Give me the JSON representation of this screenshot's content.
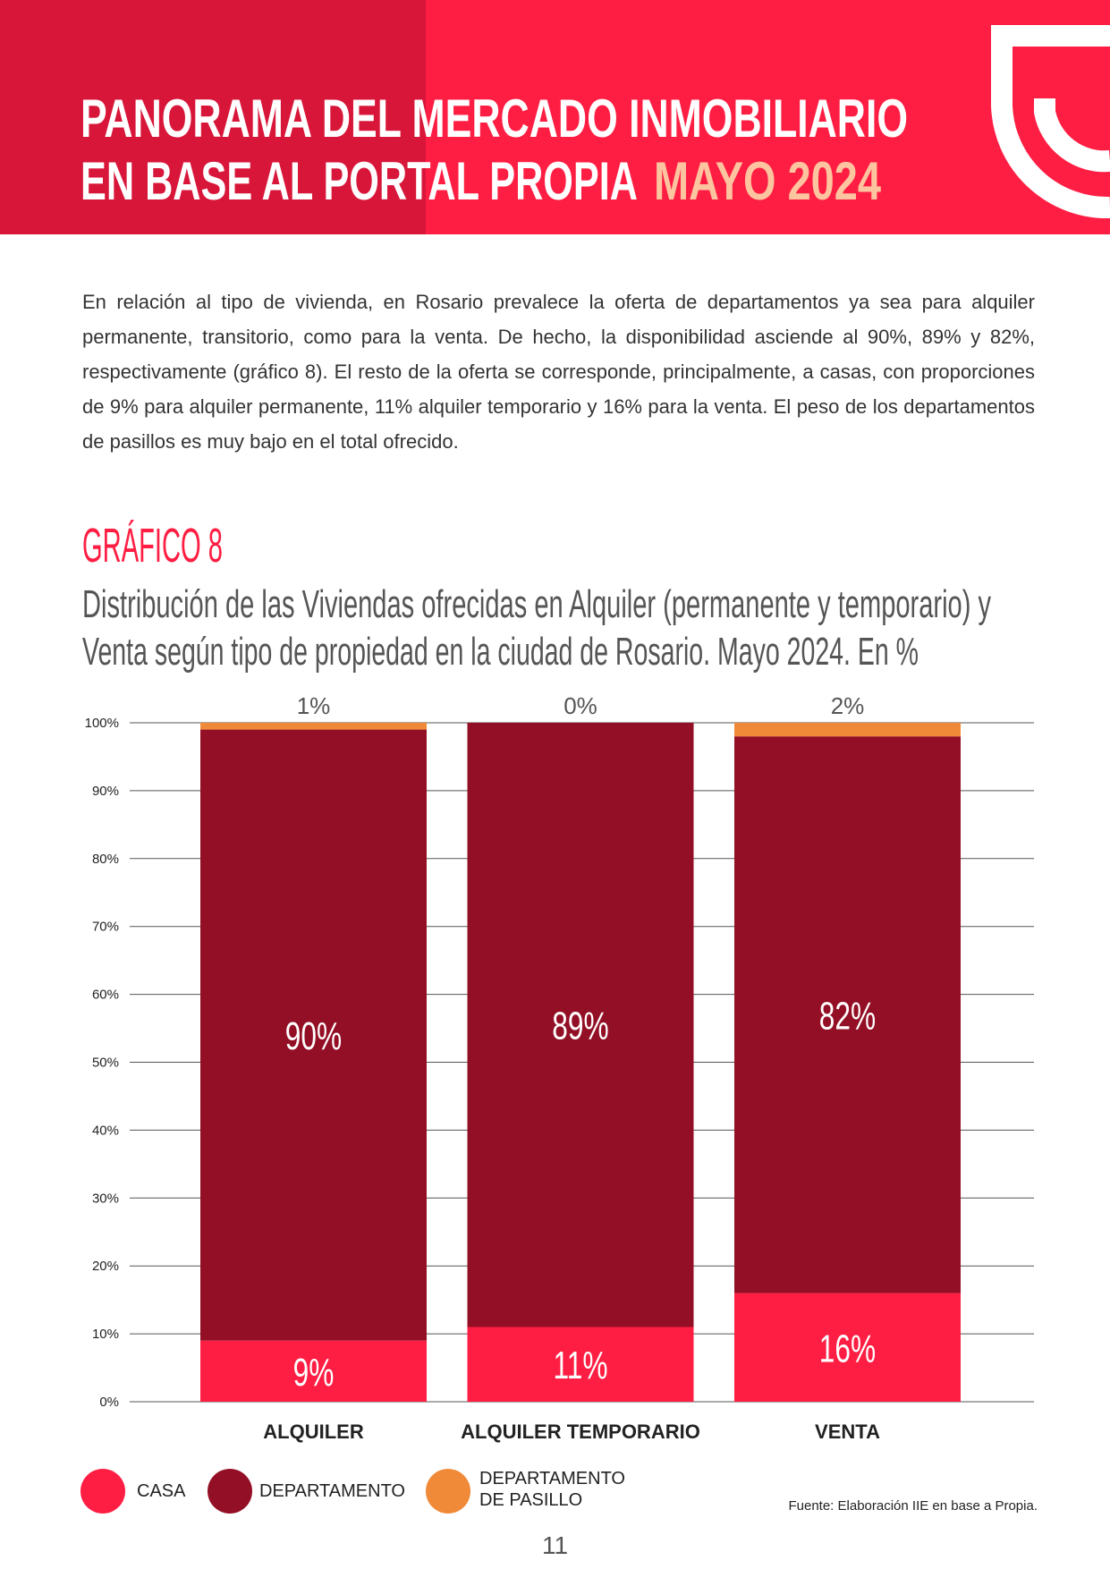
{
  "header": {
    "line1": "PANORAMA DEL MERCADO INMOBILIARIO",
    "line2": "EN BASE AL PORTAL PROPIA",
    "highlight": "MAYO 2024"
  },
  "paragraph": "En relación al tipo de vivienda, en Rosario prevalece la oferta de departamentos ya sea para alquiler permanente, transitorio, como para la venta. De hecho, la disponibilidad asciende al 90%, 89% y 82%, respectivamente (gráfico 8). El resto de la oferta se corresponde, principalmente, a casas, con proporciones de 9% para alquiler permanente, 11% alquiler temporario y 16% para la venta. El peso de los departamentos de pasillos es muy bajo en el total ofrecido.",
  "chart_data": {
    "type": "stacked_bar",
    "title": "GRÁFICO 8",
    "subtitle_lines": [
      "Distribución de las Viviendas ofrecidas en Alquiler (permanente y temporario) y",
      "Venta según tipo de propiedad en la ciudad de Rosario. Mayo 2024. En %"
    ],
    "categories": [
      "ALQUILER",
      "ALQUILER TEMPORARIO",
      "VENTA"
    ],
    "series": [
      {
        "name": "CASA",
        "color": "#ff1e43",
        "values": [
          9,
          11,
          16
        ],
        "value_labels": [
          "9%",
          "11%",
          "16%"
        ]
      },
      {
        "name": "DEPARTAMENTO",
        "color": "#930f25",
        "values": [
          90,
          89,
          82
        ],
        "value_labels": [
          "90%",
          "89%",
          "82%"
        ]
      },
      {
        "name": "DEPARTAMENTO DE PASILLO",
        "color": "#f08a38",
        "values": [
          1,
          0,
          2
        ],
        "value_labels": [
          "1%",
          "0%",
          "2%"
        ]
      }
    ],
    "ylim": [
      0,
      100
    ],
    "yticks": [
      {
        "value": 0,
        "label": "0%"
      },
      {
        "value": 10,
        "label": "10%"
      },
      {
        "value": 20,
        "label": "20%"
      },
      {
        "value": 30,
        "label": "30%"
      },
      {
        "value": 40,
        "label": "40%"
      },
      {
        "value": 50,
        "label": "50%"
      },
      {
        "value": 60,
        "label": "60%"
      },
      {
        "value": 70,
        "label": "70%"
      },
      {
        "value": 80,
        "label": "80%"
      },
      {
        "value": 90,
        "label": "90%"
      },
      {
        "value": 100,
        "label": "100%"
      }
    ],
    "grid": true
  },
  "source": "Fuente: Elaboración IIE en base a Propia.",
  "page_number": "11"
}
